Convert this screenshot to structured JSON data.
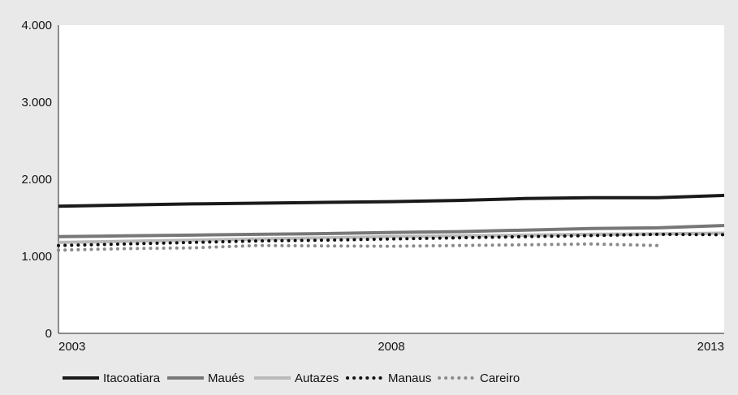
{
  "chart_data": {
    "type": "line",
    "title": "",
    "xlabel": "",
    "ylabel": "",
    "x": [
      2003,
      2004,
      2005,
      2006,
      2007,
      2008,
      2009,
      2010,
      2011,
      2012,
      2013
    ],
    "x_tick_labels": [
      {
        "x": 2003,
        "label": "2003"
      },
      {
        "x": 2008,
        "label": "2008"
      },
      {
        "x": 2013,
        "label": "2013"
      }
    ],
    "y_ticks": [
      {
        "value": 0,
        "label": "0"
      },
      {
        "value": 1000,
        "label": "1.000"
      },
      {
        "value": 2000,
        "label": "2.000"
      },
      {
        "value": 3000,
        "label": "3.000"
      },
      {
        "value": 4000,
        "label": "4.000"
      }
    ],
    "xlim": [
      2003,
      2013
    ],
    "ylim": [
      0,
      4000
    ],
    "grid": false,
    "legend_position": "bottom",
    "series": [
      {
        "name": "Itacoatiara",
        "color": "#1a1a1a",
        "style": "solid",
        "values": [
          1650,
          1665,
          1680,
          1690,
          1700,
          1710,
          1725,
          1750,
          1760,
          1760,
          1790
        ]
      },
      {
        "name": "Maués",
        "color": "#777777",
        "style": "solid",
        "values": [
          1255,
          1265,
          1275,
          1285,
          1295,
          1310,
          1320,
          1340,
          1360,
          1370,
          1400
        ]
      },
      {
        "name": "Autazes",
        "color": "#b9b9b9",
        "style": "solid",
        "values": [
          1180,
          1195,
          1210,
          1225,
          1240,
          1255,
          1265,
          1275,
          1285,
          1290,
          1300
        ]
      },
      {
        "name": "Manaus",
        "color": "#111111",
        "style": "dotted",
        "values": [
          1140,
          1160,
          1180,
          1200,
          1210,
          1225,
          1240,
          1255,
          1270,
          1285,
          1280
        ]
      },
      {
        "name": "Careiro",
        "color": "#8a8a8a",
        "style": "dotted",
        "values": [
          1080,
          1100,
          1110,
          1140,
          1135,
          1130,
          1140,
          1150,
          1160,
          1140,
          null
        ]
      }
    ]
  }
}
